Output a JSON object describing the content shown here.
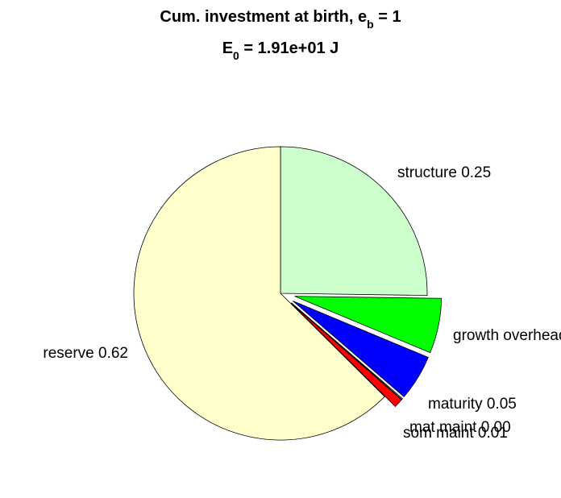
{
  "chart_data": {
    "type": "pie",
    "title": {
      "line1": {
        "main": "Cum. investment at birth, e",
        "sub": "b",
        "tail": " = 1"
      },
      "line2": {
        "main": "E",
        "sub": "0",
        "tail": " = 1.91e+01 J"
      }
    },
    "slices": [
      {
        "label": "structure 0.25",
        "value": 0.25,
        "color": "#CCFFCC",
        "exploded": false
      },
      {
        "label": "growth overhead",
        "value": 0.06,
        "color": "#00FF00",
        "exploded": true
      },
      {
        "label": "maturity 0.05",
        "value": 0.05,
        "color": "#0000FF",
        "exploded": true
      },
      {
        "label": "mat maint 0.00",
        "value": 0.001,
        "color": "#FFFFFF",
        "exploded": true
      },
      {
        "label": "som maint 0.01",
        "value": 0.01,
        "color": "#FF0000",
        "exploded": true
      },
      {
        "label": "reserve 0.62",
        "value": 0.62,
        "color": "#FFFFCC",
        "exploded": false
      }
    ]
  }
}
